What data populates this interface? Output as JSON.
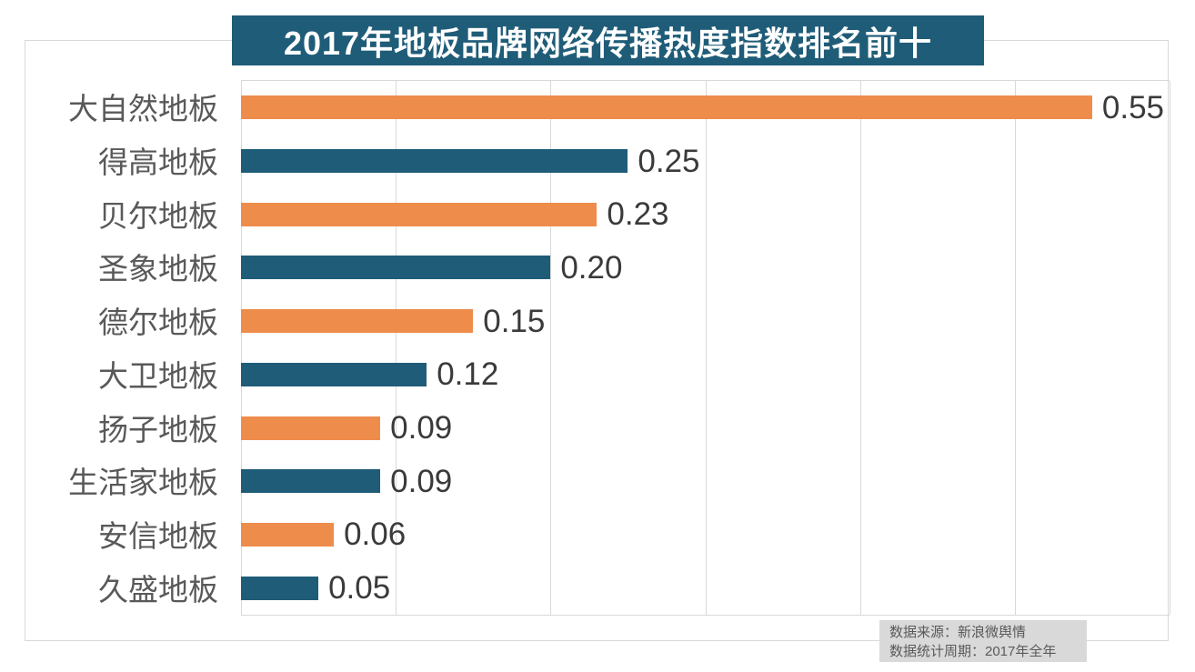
{
  "chart_data": {
    "type": "bar",
    "orientation": "horizontal",
    "title": "2017年地板品牌网络传播热度指数排名前十",
    "categories": [
      "大自然地板",
      "得高地板",
      "贝尔地板",
      "圣象地板",
      "德尔地板",
      "大卫地板",
      "扬子地板",
      "生活家地板",
      "安信地板",
      "久盛地板"
    ],
    "values": [
      0.55,
      0.25,
      0.23,
      0.2,
      0.15,
      0.12,
      0.09,
      0.09,
      0.06,
      0.05
    ],
    "value_labels": [
      "0.55",
      "0.25",
      "0.23",
      "0.20",
      "0.15",
      "0.12",
      "0.09",
      "0.09",
      "0.06",
      "0.05"
    ],
    "xlabel": "",
    "ylabel": "",
    "xlim": [
      0,
      0.6
    ],
    "gridline_interval": 0.1,
    "grid": "vertical gridlines only, no tick labels",
    "legend": "none",
    "alternating_colors": [
      "#ee8c4b",
      "#1f5c78"
    ]
  },
  "source": {
    "line1": "数据来源：新浪微舆情",
    "line2": "数据统计周期：2017年全年"
  },
  "colors": {
    "title_bg": "#1f5c78",
    "title_text": "#ffffff",
    "orange_bar": "#ee8c4b",
    "teal_bar": "#1f5c78",
    "grid_line": "#d9d9d9",
    "frame_border": "#d9d9d9",
    "category_label": "#595959",
    "value_label": "#3a3a3a",
    "source_bg": "#d9d9d9",
    "source_text": "#595959"
  }
}
